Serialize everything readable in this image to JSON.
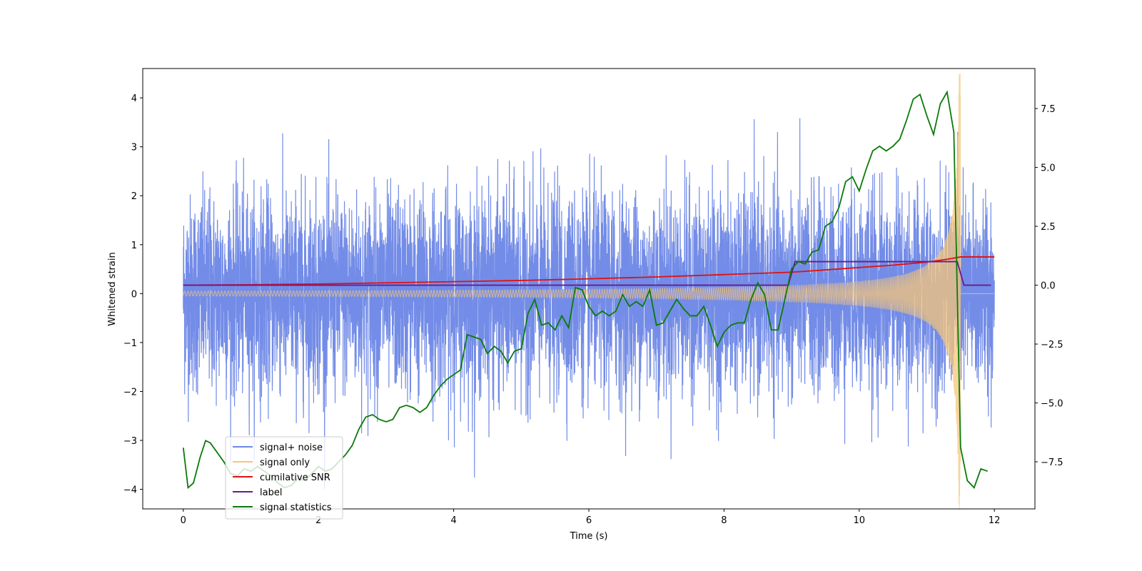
{
  "chart_data": {
    "type": "line",
    "title": "",
    "xlabel": "Time (s)",
    "ylabel": "Whitened strain",
    "y2label": "",
    "xlim": [
      -0.6,
      12.6
    ],
    "ylim": [
      -4.4,
      4.6
    ],
    "y2lim": [
      -9.5,
      9.2
    ],
    "xticks": [
      0,
      2,
      4,
      6,
      8,
      10,
      12
    ],
    "yticks": [
      -4,
      -3,
      -2,
      -1,
      0,
      1,
      2,
      3,
      4
    ],
    "y2ticks": [
      -7.5,
      -5.0,
      -2.5,
      0.0,
      2.5,
      5.0,
      7.5
    ],
    "xtick_labels": [
      "0",
      "2",
      "4",
      "6",
      "8",
      "10",
      "12"
    ],
    "ytick_labels": [
      "−4",
      "−3",
      "−2",
      "−1",
      "0",
      "1",
      "2",
      "3",
      "4"
    ],
    "y2tick_labels": [
      "−7.5",
      "−5.0",
      "−2.5",
      "0.0",
      "2.5",
      "5.0",
      "7.5"
    ],
    "grid": false,
    "legend_position": "lower-left",
    "series": [
      {
        "name": "signal+ noise",
        "axis": "left",
        "color": "#6b86e6",
        "description_kind": "noise",
        "duration": [
          0,
          12
        ],
        "std": 1.0,
        "peak_range": [
          -4.0,
          4.0
        ]
      },
      {
        "name": "signal only",
        "axis": "left",
        "color": "#f5c57a",
        "description_kind": "chirp",
        "duration": [
          0,
          12
        ],
        "merger_time": 11.5,
        "amplitude_start": 0.05,
        "amplitude_peak": 4.5
      },
      {
        "name": "cumilative SNR",
        "axis": "right",
        "color": "#e01010",
        "x": [
          0,
          1,
          2,
          3,
          4,
          5,
          6,
          7,
          8,
          9,
          10,
          10.5,
          11,
          11.3,
          11.5,
          12
        ],
        "y": [
          0,
          0.02,
          0.05,
          0.1,
          0.15,
          0.2,
          0.27,
          0.35,
          0.45,
          0.55,
          0.75,
          0.85,
          0.98,
          1.1,
          1.2,
          1.2
        ]
      },
      {
        "name": "label",
        "axis": "right",
        "color": "#6a1b8a",
        "x": [
          0,
          8.95,
          9.05,
          11.45,
          11.55,
          11.95
        ],
        "y": [
          0,
          0,
          1,
          1,
          0,
          0
        ]
      },
      {
        "name": "signal statistics",
        "axis": "right",
        "color": "#0a7a0a",
        "x": [
          0.0,
          0.07,
          0.15,
          0.25,
          0.33,
          0.4,
          0.5,
          0.6,
          0.7,
          0.8,
          0.9,
          1.0,
          1.1,
          1.2,
          1.3,
          1.4,
          1.5,
          1.6,
          1.7,
          1.8,
          1.9,
          2.0,
          2.1,
          2.2,
          2.3,
          2.4,
          2.5,
          2.6,
          2.7,
          2.8,
          2.9,
          3.0,
          3.1,
          3.2,
          3.3,
          3.4,
          3.5,
          3.6,
          3.7,
          3.8,
          3.9,
          4.0,
          4.1,
          4.2,
          4.3,
          4.4,
          4.5,
          4.6,
          4.7,
          4.8,
          4.9,
          5.0,
          5.1,
          5.2,
          5.3,
          5.4,
          5.5,
          5.6,
          5.7,
          5.8,
          5.9,
          6.0,
          6.1,
          6.2,
          6.3,
          6.4,
          6.5,
          6.6,
          6.7,
          6.8,
          6.9,
          7.0,
          7.1,
          7.2,
          7.3,
          7.4,
          7.5,
          7.6,
          7.7,
          7.8,
          7.9,
          8.0,
          8.1,
          8.2,
          8.3,
          8.4,
          8.5,
          8.6,
          8.7,
          8.8,
          8.9,
          9.0,
          9.1,
          9.2,
          9.3,
          9.4,
          9.5,
          9.6,
          9.7,
          9.8,
          9.9,
          10.0,
          10.1,
          10.2,
          10.3,
          10.4,
          10.5,
          10.6,
          10.7,
          10.8,
          10.9,
          11.0,
          11.1,
          11.2,
          11.3,
          11.4,
          11.5,
          11.6,
          11.7,
          11.8,
          11.9
        ],
        "y": [
          -6.9,
          -8.6,
          -8.4,
          -7.3,
          -6.6,
          -6.7,
          -7.1,
          -7.5,
          -8.0,
          -8.1,
          -7.8,
          -7.9,
          -7.7,
          -7.9,
          -8.1,
          -8.4,
          -8.6,
          -8.5,
          -8.2,
          -8.3,
          -8.0,
          -7.7,
          -7.9,
          -7.8,
          -7.5,
          -7.2,
          -6.8,
          -6.1,
          -5.6,
          -5.5,
          -5.7,
          -5.8,
          -5.7,
          -5.2,
          -5.1,
          -5.2,
          -5.4,
          -5.2,
          -4.7,
          -4.3,
          -4.0,
          -3.8,
          -3.6,
          -2.1,
          -2.2,
          -2.3,
          -2.9,
          -2.6,
          -2.8,
          -3.3,
          -2.8,
          -2.7,
          -1.2,
          -0.6,
          -1.7,
          -1.6,
          -1.9,
          -1.3,
          -1.8,
          -0.1,
          -0.2,
          -0.9,
          -1.3,
          -1.1,
          -1.3,
          -1.1,
          -0.4,
          -0.9,
          -0.7,
          -0.9,
          -0.2,
          -1.7,
          -1.6,
          -1.1,
          -0.6,
          -1.0,
          -1.3,
          -1.3,
          -0.9,
          -1.7,
          -2.6,
          -2.0,
          -1.7,
          -1.6,
          -1.6,
          -0.6,
          0.1,
          -0.4,
          -1.9,
          -1.9,
          -0.6,
          0.7,
          1.0,
          0.9,
          1.4,
          1.5,
          2.5,
          2.7,
          3.3,
          4.4,
          4.6,
          4.0,
          4.9,
          5.7,
          5.9,
          5.7,
          5.9,
          6.2,
          7.0,
          7.9,
          8.1,
          7.2,
          6.4,
          7.7,
          8.2,
          6.5,
          -6.9,
          -8.3,
          -8.6,
          -7.8,
          -7.9
        ]
      }
    ]
  }
}
